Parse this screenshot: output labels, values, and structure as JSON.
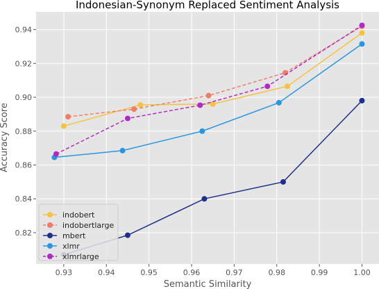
{
  "chart_data": {
    "type": "line",
    "title": "Indonesian-Synonym Replaced Sentiment Analysis",
    "xlabel": "Semantic Similarity",
    "ylabel": "Accuracy Score",
    "xlim": [
      0.9235,
      1.004
    ],
    "ylim": [
      0.8015,
      0.9505
    ],
    "xticks": [
      0.93,
      0.94,
      0.95,
      0.96,
      0.97,
      0.98,
      0.99,
      1.0
    ],
    "xtick_labels": [
      "0.93",
      "0.94",
      "0.95",
      "0.96",
      "0.97",
      "0.98",
      "0.99",
      "1.00"
    ],
    "yticks": [
      0.82,
      0.84,
      0.86,
      0.88,
      0.9,
      0.92,
      0.94
    ],
    "ytick_labels": [
      "0.82",
      "0.84",
      "0.86",
      "0.88",
      "0.90",
      "0.92",
      "0.94"
    ],
    "grid": true,
    "legend_position": "bottom-left",
    "series": [
      {
        "name": "indobert",
        "color": "#f5c242",
        "dash": "solid",
        "points": [
          [
            0.93,
            0.883
          ],
          [
            0.948,
            0.8955
          ],
          [
            0.965,
            0.896
          ],
          [
            0.9825,
            0.9065
          ],
          [
            1.0,
            0.938
          ]
        ]
      },
      {
        "name": "indobertlarge",
        "color": "#f07d6a",
        "dash": "dashed",
        "points": [
          [
            0.931,
            0.8885
          ],
          [
            0.9465,
            0.893
          ],
          [
            0.964,
            0.901
          ],
          [
            0.982,
            0.9145
          ],
          [
            1.0,
            0.942
          ]
        ]
      },
      {
        "name": "mbert",
        "color": "#1f2f8c",
        "dash": "solid",
        "points": [
          [
            0.93,
            0.807
          ],
          [
            0.945,
            0.8185
          ],
          [
            0.963,
            0.84
          ],
          [
            0.9815,
            0.85
          ],
          [
            1.0,
            0.898
          ]
        ]
      },
      {
        "name": "xlmr",
        "color": "#2b96e0",
        "dash": "solid",
        "points": [
          [
            0.9278,
            0.8645
          ],
          [
            0.9438,
            0.8685
          ],
          [
            0.9625,
            0.88
          ],
          [
            0.9805,
            0.8968
          ],
          [
            1.0,
            0.9315
          ]
        ]
      },
      {
        "name": "xlmrlarge",
        "color": "#b02bc4",
        "dash": "dashed",
        "points": [
          [
            0.9282,
            0.8665
          ],
          [
            0.945,
            0.8875
          ],
          [
            0.962,
            0.8953
          ],
          [
            0.9778,
            0.9065
          ],
          [
            1.0,
            0.9425
          ]
        ]
      }
    ]
  }
}
